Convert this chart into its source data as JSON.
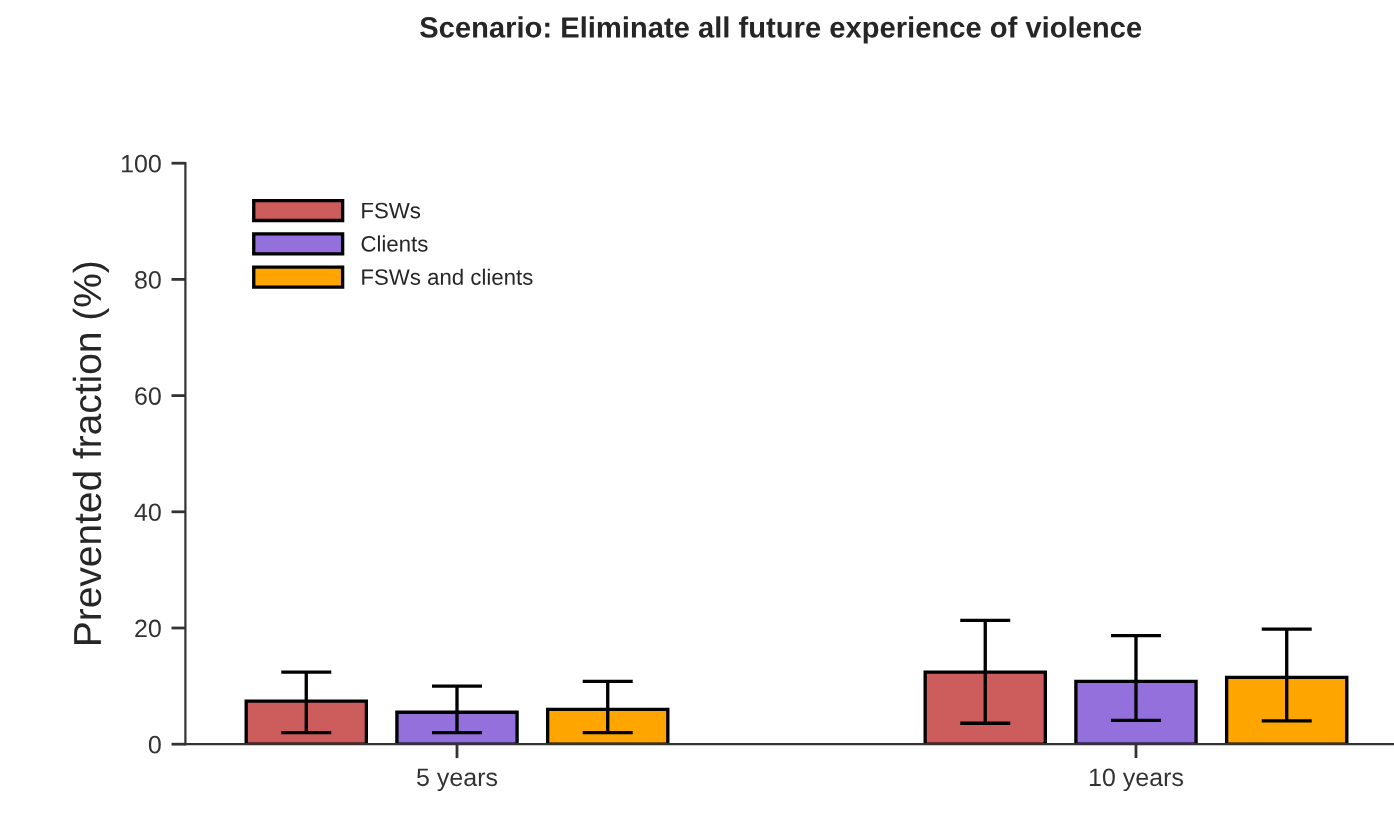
{
  "chart_data": {
    "type": "bar",
    "title": "Scenario: Eliminate all future experience of violence",
    "ylabel": "Prevented fraction (%)",
    "categories": [
      "5 years",
      "10 years"
    ],
    "series": [
      {
        "name": "FSWs",
        "color": "#cd5c5c",
        "values": [
          7.4,
          12.4
        ],
        "errors": [
          [
            2.0,
            12.4
          ],
          [
            3.6,
            21.3
          ]
        ]
      },
      {
        "name": "Clients",
        "color": "#9370db",
        "values": [
          5.5,
          10.8
        ],
        "errors": [
          [
            2.0,
            10.0
          ],
          [
            4.1,
            18.7
          ]
        ]
      },
      {
        "name": "FSWs and clients",
        "color": "#ffa500",
        "values": [
          6.0,
          11.5
        ],
        "errors": [
          [
            2.0,
            10.8
          ],
          [
            4.0,
            19.8
          ]
        ]
      }
    ],
    "ylim": [
      0,
      100
    ],
    "yticks": [
      0,
      20,
      40,
      60,
      80,
      100
    ],
    "grid": false,
    "legend": "top left"
  }
}
